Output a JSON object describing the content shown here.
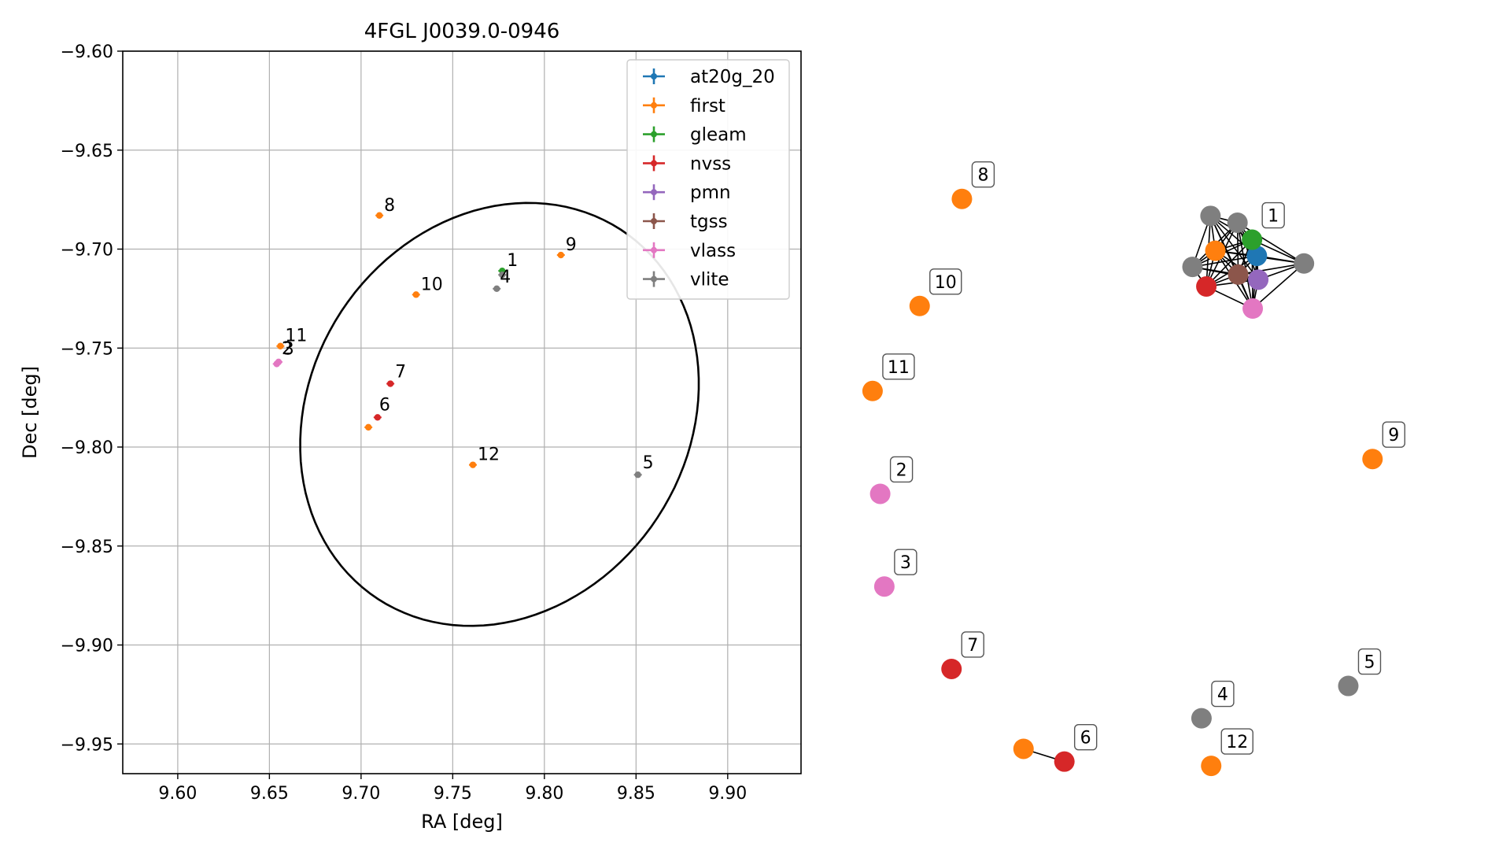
{
  "chart_data": [
    {
      "type": "scatter",
      "title": "4FGL J0039.0-0946",
      "xlabel": "RA [deg]",
      "ylabel": "Dec [deg]",
      "xlim": [
        9.57,
        9.94
      ],
      "ylim": [
        -9.965,
        -9.6
      ],
      "x_inverted": false,
      "xticks": [
        9.6,
        9.65,
        9.7,
        9.75,
        9.8,
        9.85,
        9.9
      ],
      "xtick_labels": [
        "9.60",
        "9.65",
        "9.70",
        "9.75",
        "9.80",
        "9.85",
        "9.90"
      ],
      "yticks": [
        -9.6,
        -9.65,
        -9.7,
        -9.75,
        -9.8,
        -9.85,
        -9.9,
        -9.95
      ],
      "ytick_labels": [
        "−9.60",
        "−9.65",
        "−9.70",
        "−9.75",
        "−9.80",
        "−9.85",
        "−9.90",
        "−9.95"
      ],
      "grid": true,
      "legend_position": "top-right",
      "ellipse": {
        "center": [
          9.7755,
          -9.7835
        ],
        "semi_a": 0.1154,
        "semi_b": 0.0996,
        "angle_deg": 41.6
      },
      "series": [
        {
          "name": "at20g_20",
          "color": "#1f77b4",
          "points": []
        },
        {
          "name": "first",
          "color": "#ff7f0e",
          "points": [
            {
              "x": 9.71,
              "y": -9.683,
              "label": "8",
              "dx": 6,
              "dy": -6
            },
            {
              "x": 9.809,
              "y": -9.703,
              "label": "9",
              "dx": 6,
              "dy": -6
            },
            {
              "x": 9.73,
              "y": -9.723,
              "label": "10",
              "dx": 6,
              "dy": -6
            },
            {
              "x": 9.656,
              "y": -9.749,
              "label": "11",
              "dx": 6,
              "dy": -6
            },
            {
              "x": 9.704,
              "y": -9.79,
              "label": "",
              "dx": 0,
              "dy": 0
            },
            {
              "x": 9.761,
              "y": -9.809,
              "label": "12",
              "dx": 6,
              "dy": -6
            }
          ]
        },
        {
          "name": "gleam",
          "color": "#2ca02c",
          "points": [
            {
              "x": 9.777,
              "y": -9.711,
              "label": "1",
              "dx": 6,
              "dy": -6
            }
          ]
        },
        {
          "name": "nvss",
          "color": "#d62728",
          "points": [
            {
              "x": 9.716,
              "y": -9.768,
              "label": "7",
              "dx": 6,
              "dy": -8
            },
            {
              "x": 9.709,
              "y": -9.785,
              "label": "6",
              "dx": 2,
              "dy": -9
            }
          ]
        },
        {
          "name": "pmn",
          "color": "#9467bd",
          "points": []
        },
        {
          "name": "tgss",
          "color": "#8c564b",
          "points": []
        },
        {
          "name": "vlass",
          "color": "#e377c2",
          "points": [
            {
              "x": 9.655,
              "y": -9.757,
              "label": "2",
              "dx": 4,
              "dy": -10
            },
            {
              "x": 9.654,
              "y": -9.758,
              "label": "3",
              "dx": 8,
              "dy": -12
            }
          ]
        },
        {
          "name": "vlite",
          "color": "#7f7f7f",
          "points": [
            {
              "x": 9.777,
              "y": -9.713,
              "label": "",
              "dx": 0,
              "dy": 0
            },
            {
              "x": 9.774,
              "y": -9.72,
              "label": "4",
              "dx": 4,
              "dy": -8
            },
            {
              "x": 9.851,
              "y": -9.814,
              "label": "5",
              "dx": 6,
              "dy": -8
            }
          ]
        }
      ]
    },
    {
      "type": "network",
      "nodes": [
        {
          "id": "8",
          "color": "#ff7f0e",
          "label": "8",
          "x": 0.213,
          "y": 0.234
        },
        {
          "id": "10",
          "color": "#ff7f0e",
          "label": "10",
          "x": 0.152,
          "y": 0.36
        },
        {
          "id": "11",
          "color": "#ff7f0e",
          "label": "11",
          "x": 0.084,
          "y": 0.46
        },
        {
          "id": "2",
          "color": "#e377c2",
          "label": "2",
          "x": 0.095,
          "y": 0.581
        },
        {
          "id": "3",
          "color": "#e377c2",
          "label": "3",
          "x": 0.101,
          "y": 0.69
        },
        {
          "id": "7",
          "color": "#d62728",
          "label": "7",
          "x": 0.198,
          "y": 0.787
        },
        {
          "id": "first_b",
          "color": "#ff7f0e",
          "label": "",
          "x": 0.302,
          "y": 0.881
        },
        {
          "id": "6",
          "color": "#d62728",
          "label": "6",
          "x": 0.361,
          "y": 0.896
        },
        {
          "id": "4",
          "color": "#7f7f7f",
          "label": "4",
          "x": 0.559,
          "y": 0.845
        },
        {
          "id": "12",
          "color": "#ff7f0e",
          "label": "12",
          "x": 0.573,
          "y": 0.901
        },
        {
          "id": "5",
          "color": "#7f7f7f",
          "label": "5",
          "x": 0.771,
          "y": 0.807
        },
        {
          "id": "9",
          "color": "#ff7f0e",
          "label": "9",
          "x": 0.806,
          "y": 0.54
        },
        {
          "id": "c_g1",
          "color": "#7f7f7f",
          "label": "",
          "x": 0.572,
          "y": 0.254
        },
        {
          "id": "c_g2",
          "color": "#7f7f7f",
          "label": "",
          "x": 0.611,
          "y": 0.262
        },
        {
          "id": "c_g3",
          "color": "#7f7f7f",
          "label": "",
          "x": 0.546,
          "y": 0.314
        },
        {
          "id": "c_g4",
          "color": "#7f7f7f",
          "label": "",
          "x": 0.707,
          "y": 0.31
        },
        {
          "id": "c_b",
          "color": "#1f77b4",
          "label": "",
          "x": 0.639,
          "y": 0.301
        },
        {
          "id": "c_gr",
          "color": "#2ca02c",
          "label": "1",
          "x": 0.632,
          "y": 0.282
        },
        {
          "id": "c_o",
          "color": "#ff7f0e",
          "label": "",
          "x": 0.579,
          "y": 0.295
        },
        {
          "id": "c_br",
          "color": "#8c564b",
          "label": "",
          "x": 0.612,
          "y": 0.323
        },
        {
          "id": "c_r",
          "color": "#d62728",
          "label": "",
          "x": 0.566,
          "y": 0.337
        },
        {
          "id": "c_pu",
          "color": "#9467bd",
          "label": "",
          "x": 0.641,
          "y": 0.329
        },
        {
          "id": "c_pk",
          "color": "#e377c2",
          "label": "",
          "x": 0.633,
          "y": 0.363
        }
      ],
      "edges": [
        [
          "first_b",
          "6"
        ],
        [
          "c_g1",
          "c_g2"
        ],
        [
          "c_g1",
          "c_g3"
        ],
        [
          "c_g1",
          "c_gr"
        ],
        [
          "c_g1",
          "c_b"
        ],
        [
          "c_g1",
          "c_o"
        ],
        [
          "c_g1",
          "c_br"
        ],
        [
          "c_g1",
          "c_r"
        ],
        [
          "c_g1",
          "c_pu"
        ],
        [
          "c_g1",
          "c_pk"
        ],
        [
          "c_g2",
          "c_g3"
        ],
        [
          "c_g2",
          "c_gr"
        ],
        [
          "c_g2",
          "c_b"
        ],
        [
          "c_g2",
          "c_o"
        ],
        [
          "c_g2",
          "c_br"
        ],
        [
          "c_g2",
          "c_r"
        ],
        [
          "c_g2",
          "c_pu"
        ],
        [
          "c_g2",
          "c_pk"
        ],
        [
          "c_g2",
          "c_g4"
        ],
        [
          "c_g3",
          "c_o"
        ],
        [
          "c_g3",
          "c_br"
        ],
        [
          "c_g3",
          "c_r"
        ],
        [
          "c_g3",
          "c_gr"
        ],
        [
          "c_g3",
          "c_b"
        ],
        [
          "c_g3",
          "c_pu"
        ],
        [
          "c_g4",
          "c_gr"
        ],
        [
          "c_g4",
          "c_b"
        ],
        [
          "c_g4",
          "c_pu"
        ],
        [
          "c_g4",
          "c_br"
        ],
        [
          "c_g4",
          "c_pk"
        ],
        [
          "c_g4",
          "c_o"
        ],
        [
          "c_o",
          "c_br"
        ],
        [
          "c_o",
          "c_r"
        ],
        [
          "c_o",
          "c_gr"
        ],
        [
          "c_o",
          "c_b"
        ],
        [
          "c_o",
          "c_pu"
        ],
        [
          "c_o",
          "c_pk"
        ],
        [
          "c_br",
          "c_r"
        ],
        [
          "c_br",
          "c_pu"
        ],
        [
          "c_br",
          "c_pk"
        ],
        [
          "c_br",
          "c_gr"
        ],
        [
          "c_br",
          "c_b"
        ],
        [
          "c_r",
          "c_pu"
        ],
        [
          "c_r",
          "c_pk"
        ],
        [
          "c_r",
          "c_gr"
        ],
        [
          "c_r",
          "c_b"
        ],
        [
          "c_pu",
          "c_pk"
        ],
        [
          "c_pu",
          "c_gr"
        ],
        [
          "c_pu",
          "c_b"
        ],
        [
          "c_gr",
          "c_b"
        ],
        [
          "c_pk",
          "c_gr"
        ],
        [
          "c_pk",
          "c_b"
        ]
      ]
    }
  ]
}
